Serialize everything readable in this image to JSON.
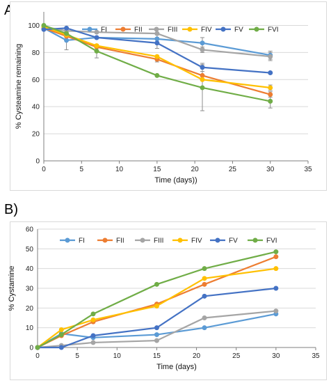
{
  "panels": [
    {
      "label": "A)"
    },
    {
      "label": "B)"
    }
  ],
  "chart_data": [
    {
      "type": "line",
      "xlabel": "Time (days))",
      "ylabel": "% Cysteamine remaining",
      "xlim": [
        0,
        35
      ],
      "ylim": [
        0,
        110
      ],
      "xticks": [
        0,
        5,
        10,
        15,
        20,
        25,
        30,
        35
      ],
      "yticks": [
        0,
        20,
        40,
        60,
        80,
        100
      ],
      "grid": "horizontal",
      "legend_position": "top",
      "x": [
        0,
        3,
        7,
        15,
        21,
        30
      ],
      "series": [
        {
          "name": "FI",
          "color": "#5b9bd5",
          "values": [
            98,
            89,
            91,
            90,
            87,
            78
          ],
          "error": [
            0,
            7,
            0,
            3,
            4,
            3
          ]
        },
        {
          "name": "FII",
          "color": "#ed7d31",
          "values": [
            98,
            92,
            84,
            75,
            63,
            49
          ],
          "error": [
            0,
            0,
            0,
            2,
            0,
            2
          ]
        },
        {
          "name": "FIII",
          "color": "#a5a5a5",
          "values": [
            99,
            96,
            95,
            94,
            82,
            77
          ],
          "error": [
            0,
            0,
            0,
            0,
            2,
            3
          ]
        },
        {
          "name": "FIV",
          "color": "#ffc000",
          "values": [
            99,
            93,
            85,
            77,
            60,
            54
          ],
          "error": [
            0,
            0,
            0,
            0,
            0,
            2
          ]
        },
        {
          "name": "FV",
          "color": "#4472c4",
          "values": [
            97,
            98,
            91,
            87,
            69,
            65
          ],
          "error": [
            0,
            0,
            0,
            4,
            3,
            0
          ]
        },
        {
          "name": "FVI",
          "color": "#70ad47",
          "values": [
            100,
            94,
            81,
            63,
            54,
            44
          ],
          "error": [
            0,
            0,
            5,
            0,
            17,
            5
          ]
        }
      ]
    },
    {
      "type": "line",
      "xlabel": "Time (days)",
      "ylabel": "% Cystamine",
      "xlim": [
        0,
        35
      ],
      "ylim": [
        0,
        60
      ],
      "xticks": [
        0,
        5,
        10,
        15,
        20,
        25,
        30,
        35
      ],
      "yticks": [
        0,
        10,
        20,
        30,
        40,
        50,
        60
      ],
      "grid": "horizontal",
      "legend_position": "top",
      "x": [
        0,
        3,
        7,
        15,
        21,
        30
      ],
      "series": [
        {
          "name": "FI",
          "color": "#5b9bd5",
          "values": [
            0,
            7,
            5,
            6.5,
            10,
            17
          ]
        },
        {
          "name": "FII",
          "color": "#ed7d31",
          "values": [
            0,
            6,
            13,
            22,
            32,
            46
          ]
        },
        {
          "name": "FIII",
          "color": "#a5a5a5",
          "values": [
            0,
            1,
            2.5,
            3.5,
            15,
            18.5
          ]
        },
        {
          "name": "FIV",
          "color": "#ffc000",
          "values": [
            0,
            9,
            14,
            21,
            35,
            40
          ]
        },
        {
          "name": "FV",
          "color": "#4472c4",
          "values": [
            0,
            0,
            6,
            10,
            26,
            30
          ]
        },
        {
          "name": "FVI",
          "color": "#70ad47",
          "values": [
            0,
            6.5,
            17,
            32,
            40,
            48.5
          ]
        }
      ]
    }
  ]
}
